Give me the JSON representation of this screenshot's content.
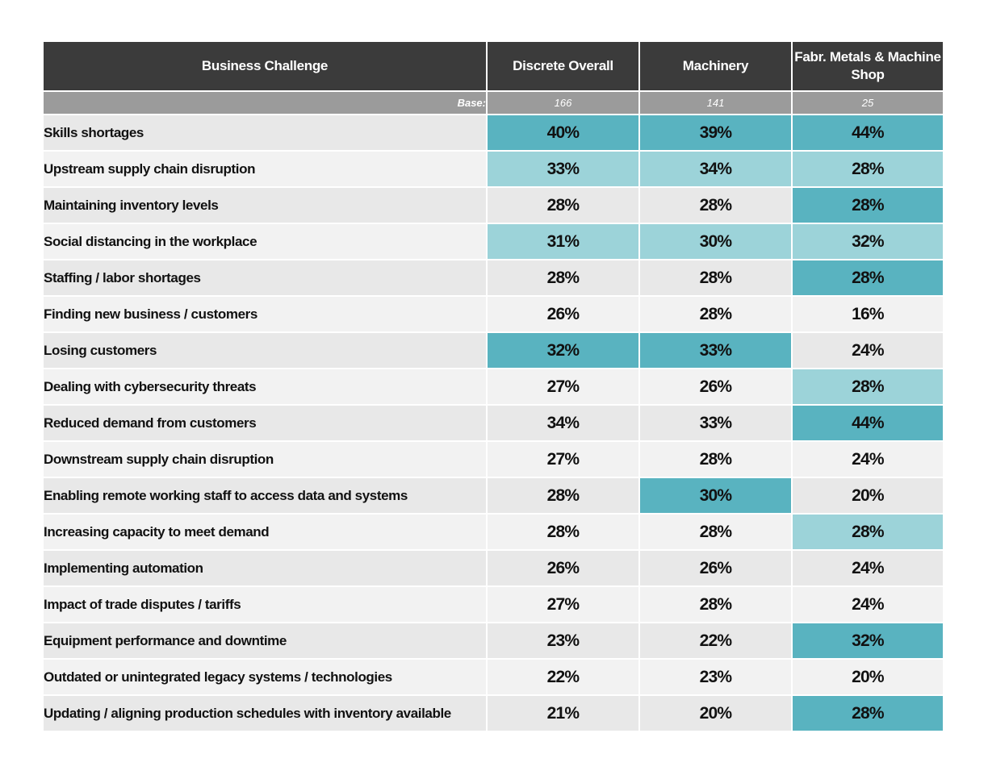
{
  "colors": {
    "header_bg": "#3b3b3b",
    "base_bg": "#9b9b9b",
    "row_odd": "#e8e8e8",
    "row_even": "#f2f2f2",
    "highlight_strong": "#59b3c0",
    "highlight_light": "#9cd3d9"
  },
  "chart_data": {
    "type": "table",
    "headers": [
      "Business Challenge",
      "Discrete Overall",
      "Machinery",
      "Fabr. Metals & Machine Shop"
    ],
    "base_label": "Base:",
    "base": [
      "166",
      "141",
      "25"
    ],
    "rows": [
      {
        "label": "Skills shortages",
        "values": [
          "40%",
          "39%",
          "44%"
        ],
        "highlight": [
          "strong",
          "strong",
          "strong"
        ]
      },
      {
        "label": "Upstream supply chain disruption",
        "values": [
          "33%",
          "34%",
          "28%"
        ],
        "highlight": [
          "light",
          "light",
          "light"
        ]
      },
      {
        "label": "Maintaining inventory levels",
        "values": [
          "28%",
          "28%",
          "28%"
        ],
        "highlight": [
          "none",
          "none",
          "strong"
        ]
      },
      {
        "label": "Social distancing in the workplace",
        "values": [
          "31%",
          "30%",
          "32%"
        ],
        "highlight": [
          "light",
          "light",
          "light"
        ]
      },
      {
        "label": "Staffing / labor shortages",
        "values": [
          "28%",
          "28%",
          "28%"
        ],
        "highlight": [
          "none",
          "none",
          "strong"
        ]
      },
      {
        "label": "Finding new business / customers",
        "values": [
          "26%",
          "28%",
          "16%"
        ],
        "highlight": [
          "none",
          "none",
          "none"
        ]
      },
      {
        "label": "Losing customers",
        "values": [
          "32%",
          "33%",
          "24%"
        ],
        "highlight": [
          "strong",
          "strong",
          "none"
        ]
      },
      {
        "label": "Dealing with cybersecurity threats",
        "values": [
          "27%",
          "26%",
          "28%"
        ],
        "highlight": [
          "none",
          "none",
          "light"
        ]
      },
      {
        "label": "Reduced demand from customers",
        "values": [
          "34%",
          "33%",
          "44%"
        ],
        "highlight": [
          "none",
          "none",
          "strong"
        ]
      },
      {
        "label": "Downstream supply chain disruption",
        "values": [
          "27%",
          "28%",
          "24%"
        ],
        "highlight": [
          "none",
          "none",
          "none"
        ]
      },
      {
        "label": "Enabling remote working staff to access data and systems",
        "values": [
          "28%",
          "30%",
          "20%"
        ],
        "highlight": [
          "none",
          "strong",
          "none"
        ]
      },
      {
        "label": "Increasing capacity to meet demand",
        "values": [
          "28%",
          "28%",
          "28%"
        ],
        "highlight": [
          "none",
          "none",
          "light"
        ]
      },
      {
        "label": "Implementing automation",
        "values": [
          "26%",
          "26%",
          "24%"
        ],
        "highlight": [
          "none",
          "none",
          "none"
        ]
      },
      {
        "label": "Impact of trade disputes / tariffs",
        "values": [
          "27%",
          "28%",
          "24%"
        ],
        "highlight": [
          "none",
          "none",
          "none"
        ]
      },
      {
        "label": "Equipment performance and downtime",
        "values": [
          "23%",
          "22%",
          "32%"
        ],
        "highlight": [
          "none",
          "none",
          "strong"
        ]
      },
      {
        "label": "Outdated or unintegrated legacy systems / technologies",
        "values": [
          "22%",
          "23%",
          "20%"
        ],
        "highlight": [
          "none",
          "none",
          "none"
        ]
      },
      {
        "label": "Updating / aligning production schedules with inventory available",
        "values": [
          "21%",
          "20%",
          "28%"
        ],
        "highlight": [
          "none",
          "none",
          "strong"
        ]
      }
    ]
  }
}
